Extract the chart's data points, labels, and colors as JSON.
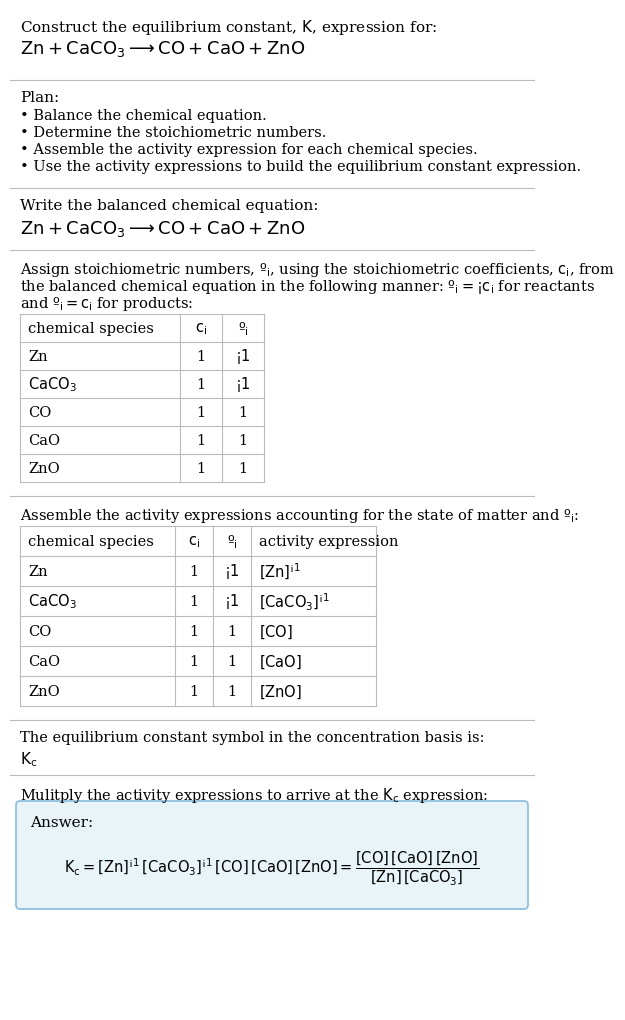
{
  "bg_color": "#ffffff",
  "text_color": "#000000",
  "table_border_color": "#bbbbbb",
  "answer_box_color": "#e8f4f8",
  "answer_box_border": "#88bbdd",
  "separator_color": "#bbbbbb",
  "title_line1": "Construct the equilibrium constant, $K$, expression for:",
  "title_line2": "$\\mathrm{Zn + CaCO_3 \\longrightarrow CO + CaO + ZnO}$",
  "plan_bullets": [
    "\\u2022 Balance the chemical equation.",
    "\\u2022 Determine the stoichiometric numbers.",
    "\\u2022 Assemble the activity expression for each chemical species.",
    "\\u2022 Use the activity expressions to build the equilibrium constant expression."
  ],
  "table1_headers": [
    "chemical species",
    "$c_i$",
    "$\\nu_i$"
  ],
  "table1_data": [
    [
      "Zn",
      "1",
      "$-1$"
    ],
    [
      "$\\mathrm{CaCO_3}$",
      "1",
      "$-1$"
    ],
    [
      "CO",
      "1",
      "1"
    ],
    [
      "CaO",
      "1",
      "1"
    ],
    [
      "ZnO",
      "1",
      "1"
    ]
  ],
  "table2_headers": [
    "chemical species",
    "$c_i$",
    "$\\nu_i$",
    "activity expression"
  ],
  "table2_data": [
    [
      "Zn",
      "1",
      "$-1$",
      "$[\\mathrm{Zn}]^{-1}$"
    ],
    [
      "$\\mathrm{CaCO_3}$",
      "1",
      "$-1$",
      "$[\\mathrm{CaCO_3}]^{-1}$"
    ],
    [
      "CO",
      "1",
      "1",
      "$[\\mathrm{CO}]$"
    ],
    [
      "CaO",
      "1",
      "1",
      "$[\\mathrm{CaO}]$"
    ],
    [
      "ZnO",
      "1",
      "1",
      "$[\\mathrm{ZnO}]$"
    ]
  ]
}
